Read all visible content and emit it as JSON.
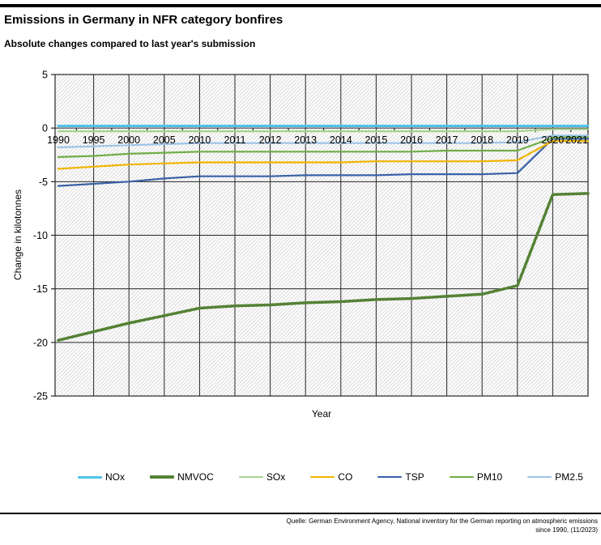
{
  "page": {
    "title": "Emissions in Germany in NFR category bonfires",
    "subtitle": "Absolute changes compared to last year's submission",
    "source_line1": "Quelle: German Environment Agency, National inventory for the German reporting on atmospheric emissions",
    "source_line2": "since 1990, (11/2023)"
  },
  "chart_data": {
    "type": "line",
    "title": "Emissions in Germany in NFR category bonfires",
    "subtitle": "Absolute changes compared to last year's submission",
    "xlabel": "Year",
    "ylabel": "Change in kilotonnes",
    "ylim": [
      -25,
      5
    ],
    "yticks": [
      5,
      0,
      -5,
      -10,
      -15,
      -20,
      -25
    ],
    "grid": true,
    "plot_background": "diagonal-hatch",
    "legend_position": "bottom",
    "categories": [
      "1990",
      "1995",
      "2000",
      "2005",
      "2010",
      "2011",
      "2012",
      "2013",
      "2014",
      "2015",
      "2016",
      "2017",
      "2018",
      "2019",
      "2020",
      "2021"
    ],
    "series": [
      {
        "name": "NOx",
        "color": "#4EC3E8",
        "width": 3,
        "values": [
          0.2,
          0.2,
          0.2,
          0.2,
          0.2,
          0.2,
          0.2,
          0.2,
          0.2,
          0.2,
          0.2,
          0.2,
          0.2,
          0.2,
          0.2,
          0.2
        ]
      },
      {
        "name": "NMVOC",
        "color": "#548235",
        "width": 3.5,
        "values": [
          -19.8,
          -19.0,
          -18.2,
          -17.5,
          -16.8,
          -16.6,
          -16.5,
          -16.3,
          -16.2,
          -16.0,
          -15.9,
          -15.7,
          -15.5,
          -14.7,
          -6.2,
          -6.1
        ]
      },
      {
        "name": "SOx",
        "color": "#A9D18E",
        "width": 2.2,
        "values": [
          -0.3,
          -0.3,
          -0.3,
          -0.3,
          -0.3,
          -0.3,
          -0.3,
          -0.3,
          -0.3,
          -0.3,
          -0.3,
          -0.3,
          -0.3,
          -0.3,
          -0.1,
          -0.1
        ]
      },
      {
        "name": "CO",
        "color": "#F0B400",
        "width": 2.2,
        "values": [
          -3.8,
          -3.6,
          -3.4,
          -3.3,
          -3.2,
          -3.2,
          -3.2,
          -3.2,
          -3.2,
          -3.1,
          -3.1,
          -3.1,
          -3.1,
          -3.0,
          -1.2,
          -1.2
        ]
      },
      {
        "name": "TSP",
        "color": "#3A62A8",
        "width": 2.2,
        "values": [
          -5.4,
          -5.2,
          -5.0,
          -4.7,
          -4.5,
          -4.5,
          -4.5,
          -4.4,
          -4.4,
          -4.4,
          -4.3,
          -4.3,
          -4.3,
          -4.2,
          -1.0,
          -1.0
        ]
      },
      {
        "name": "PM10",
        "color": "#70AD47",
        "width": 2.2,
        "values": [
          -2.7,
          -2.6,
          -2.4,
          -2.3,
          -2.2,
          -2.2,
          -2.2,
          -2.2,
          -2.2,
          -2.2,
          -2.2,
          -2.1,
          -2.1,
          -2.1,
          -0.9,
          -0.8
        ]
      },
      {
        "name": "PM2.5",
        "color": "#9DC3E6",
        "width": 2.2,
        "values": [
          -1.8,
          -1.7,
          -1.6,
          -1.5,
          -1.4,
          -1.4,
          -1.4,
          -1.4,
          -1.4,
          -1.4,
          -1.4,
          -1.4,
          -1.4,
          -1.3,
          -0.7,
          -0.7
        ]
      }
    ]
  }
}
